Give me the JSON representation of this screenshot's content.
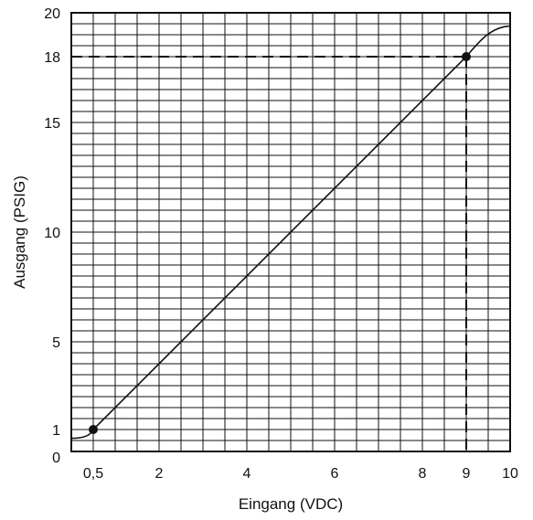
{
  "chart_data": {
    "type": "line",
    "xlabel": "Eingang (VDC)",
    "ylabel": "Ausgang (PSIG)",
    "xlim": [
      0,
      10
    ],
    "ylim": [
      0,
      20
    ],
    "grid": true,
    "x_ticks": [
      {
        "value": 0.5,
        "label": "0,5"
      },
      {
        "value": 2,
        "label": "2"
      },
      {
        "value": 4,
        "label": "4"
      },
      {
        "value": 6,
        "label": "6"
      },
      {
        "value": 8,
        "label": "8"
      },
      {
        "value": 9,
        "label": "9"
      },
      {
        "value": 10,
        "label": "10"
      }
    ],
    "y_ticks": [
      {
        "value": 0,
        "label": "0"
      },
      {
        "value": 1,
        "label": "1"
      },
      {
        "value": 5,
        "label": "5"
      },
      {
        "value": 10,
        "label": "10"
      },
      {
        "value": 15,
        "label": "15"
      },
      {
        "value": 18,
        "label": "18"
      },
      {
        "value": 20,
        "label": "20"
      }
    ],
    "series": [
      {
        "x": [
          0,
          0.25,
          0.45,
          0.5,
          9,
          9.3,
          9.6,
          10
        ],
        "y": [
          0.6,
          0.62,
          0.85,
          1,
          18,
          18.8,
          19.3,
          19.4
        ]
      }
    ],
    "markers": [
      {
        "x": 0.5,
        "y": 1
      },
      {
        "x": 9,
        "y": 18
      }
    ],
    "guides": [
      {
        "x": 9,
        "y": 18
      }
    ]
  }
}
